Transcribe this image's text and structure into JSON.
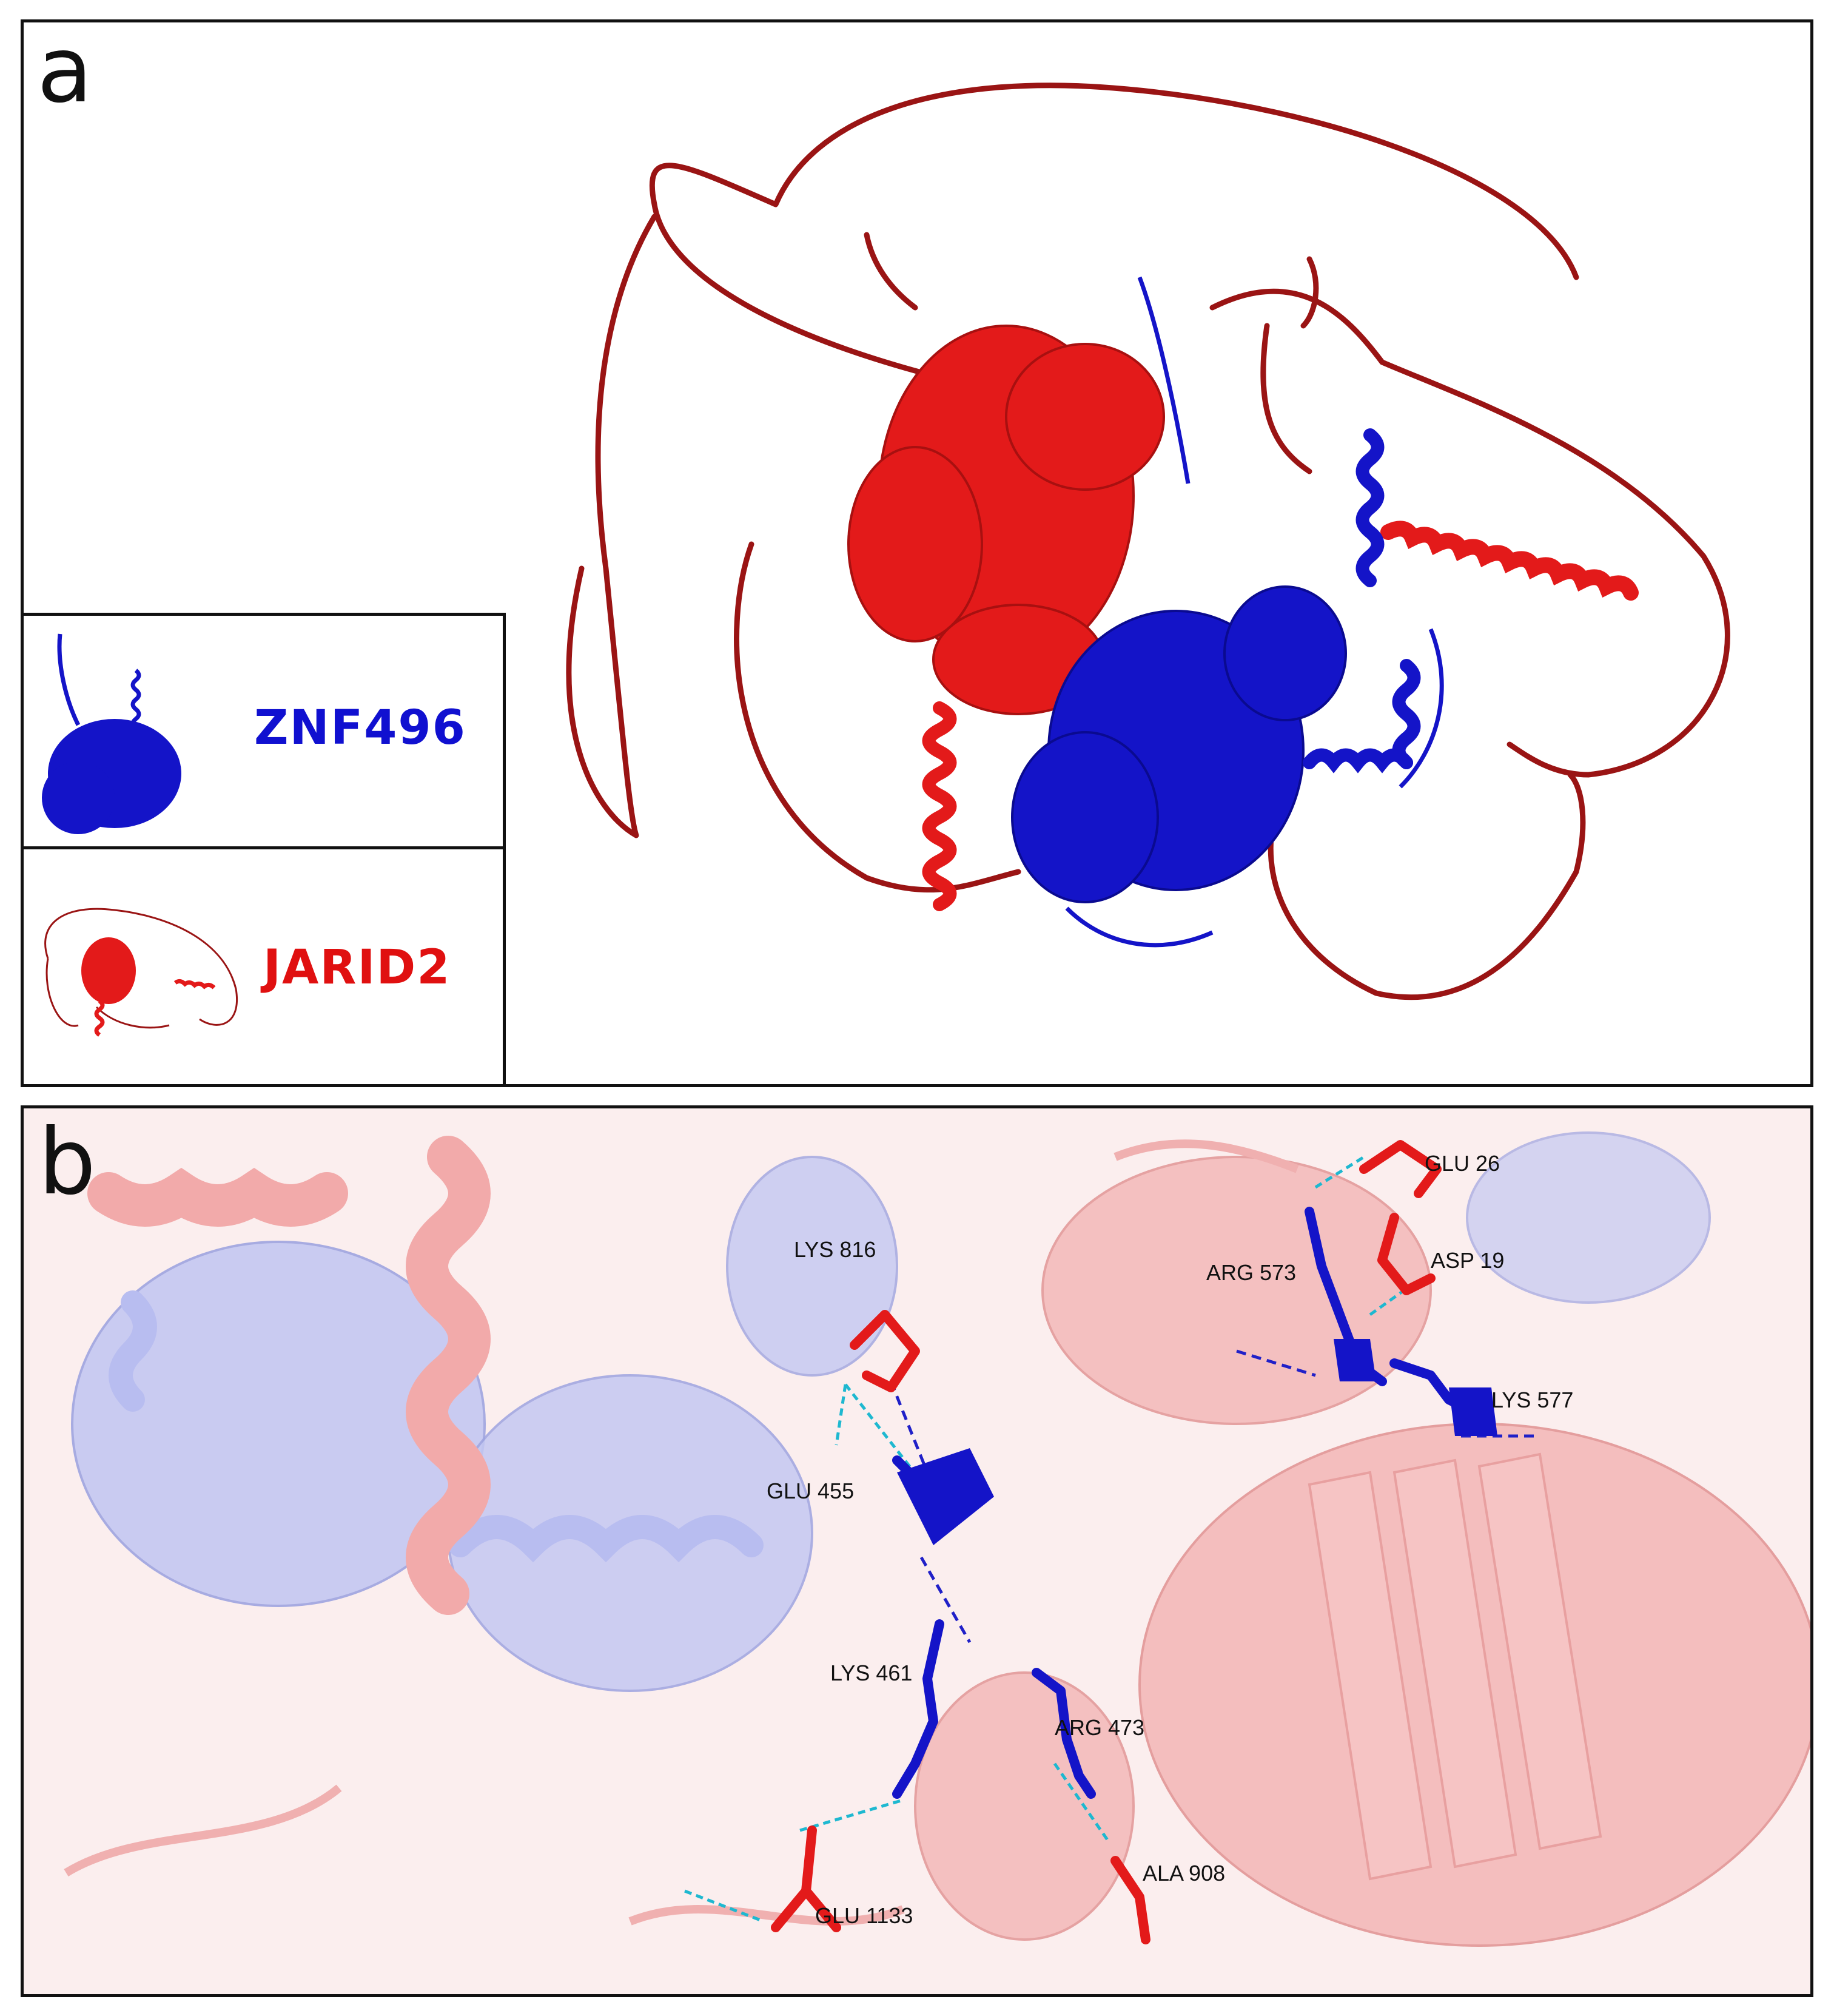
{
  "panels": {
    "a": {
      "letter": "a"
    },
    "b": {
      "letter": "b"
    }
  },
  "legend": {
    "znf": {
      "name": "ZNF496",
      "color": "#1010d0"
    },
    "jarid": {
      "name": "JARID2",
      "color": "#e01010"
    }
  },
  "colors": {
    "jarid2_dark_loop": "#9a1414",
    "jarid2_red": "#e31a1a",
    "znf496_blue": "#1414c8",
    "pale_red": "#f4bcbc",
    "pale_blue": "#c4c8f2",
    "hbond": "#1eb8d0"
  },
  "residues": [
    {
      "label": "LYS 816"
    },
    {
      "label": "GLU 455"
    },
    {
      "label": "LYS 461"
    },
    {
      "label": "ARG 473"
    },
    {
      "label": "ALA 908"
    },
    {
      "label": "GLU 1133"
    },
    {
      "label": "GLU 26"
    },
    {
      "label": "ASP 19"
    },
    {
      "label": "ARG 573"
    },
    {
      "label": "LYS 577"
    }
  ]
}
